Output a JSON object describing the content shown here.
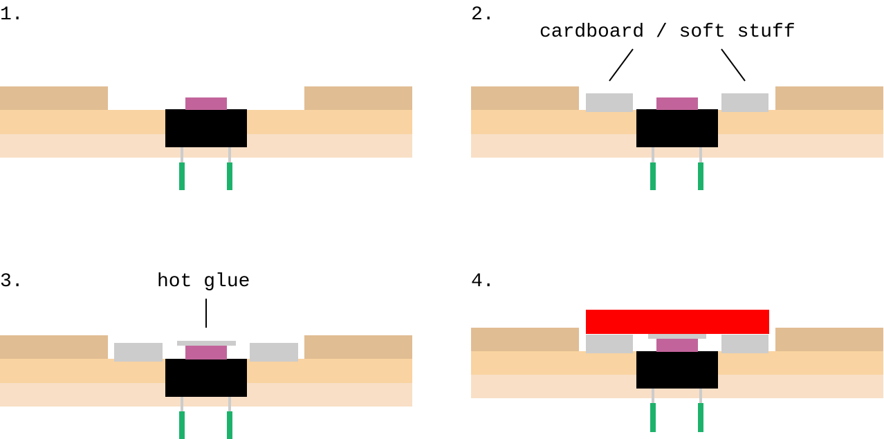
{
  "panels": [
    {
      "step": "1.",
      "annotation": ""
    },
    {
      "step": "2.",
      "annotation": "cardboard / soft stuff"
    },
    {
      "step": "3.",
      "annotation": "hot glue"
    },
    {
      "step": "4.",
      "annotation": ""
    }
  ],
  "colors": {
    "top_layer": "#e1bd93",
    "middle_layer": "#f9d3a1",
    "bottom_layer": "#f8dfc6",
    "switch_body": "#000000",
    "button_cap": "#c2649b",
    "pins": "#cccccc",
    "leads": "#1db26b",
    "spacer": "#cccccc",
    "glue": "#cccccc",
    "top_plate": "#ff0000"
  }
}
